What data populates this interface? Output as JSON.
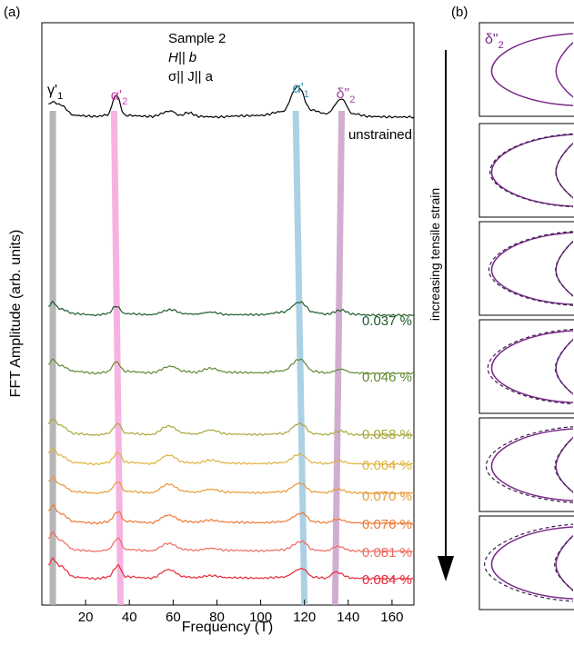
{
  "panel_a_label": "(a)",
  "panel_b_label": "(b)",
  "sample_lines": [
    "Sample 2",
    "H|| b",
    "σ|| J|| a"
  ],
  "curve_inset_label": "δ\"2",
  "arrow_label": "increasing tensile strain",
  "colors": {
    "unstrained": "#000000",
    "0.037 %": "#1f5a2a",
    "0.046 %": "#5e8a2f",
    "0.058 %": "#a8a83a",
    "0.064 %": "#e0b23c",
    "0.070 %": "#e89a37",
    "0.076 %": "#ec7a32",
    "0.081 %": "#ee6a5e",
    "0.084 %": "#e8283a",
    "peak_gamma": "#a9a9a9",
    "peak_alpha2": "#f4a6dc",
    "peak_alpha1": "#9ec9e0",
    "peak_delta2": "#c9a0c9",
    "fermi_surface": "#7a2a8a"
  },
  "chart_data": {
    "type": "line",
    "xlabel": "Frequency (T)",
    "ylabel": "FFT Amplitude (arb. units)",
    "xlim": [
      0,
      170
    ],
    "xticks": [
      20,
      40,
      60,
      80,
      100,
      120,
      140,
      160
    ],
    "yticks": [],
    "peak_labels": [
      {
        "label": "γ'1",
        "x": 5
      },
      {
        "label": "α'2",
        "x": 34
      },
      {
        "label": "α'1",
        "x": 117
      },
      {
        "label": "δ\"2",
        "x": 137
      }
    ],
    "peak_bands": [
      {
        "peak": "γ'1",
        "x_top": 5,
        "x_bottom": 5
      },
      {
        "peak": "α'2",
        "x_top": 33,
        "x_bottom": 36
      },
      {
        "peak": "α'1",
        "x_top": 116,
        "x_bottom": 120
      },
      {
        "peak": "δ\"2",
        "x_top": 137,
        "x_bottom": 134
      }
    ],
    "series": [
      {
        "name": "unstrained",
        "baseline": 0.0,
        "points": [
          [
            3,
            0.25
          ],
          [
            5,
            0.3
          ],
          [
            8,
            0.25
          ],
          [
            15,
            0.05
          ],
          [
            25,
            0.03
          ],
          [
            30,
            0.06
          ],
          [
            34,
            0.42
          ],
          [
            38,
            0.05
          ],
          [
            50,
            0.03
          ],
          [
            59,
            0.13
          ],
          [
            63,
            0.05
          ],
          [
            67,
            0.1
          ],
          [
            72,
            0.03
          ],
          [
            80,
            0.02
          ],
          [
            90,
            0.04
          ],
          [
            100,
            0.05
          ],
          [
            110,
            0.12
          ],
          [
            117,
            0.58
          ],
          [
            123,
            0.15
          ],
          [
            130,
            0.08
          ],
          [
            137,
            0.35
          ],
          [
            142,
            0.08
          ],
          [
            150,
            0.03
          ],
          [
            160,
            0.02
          ],
          [
            170,
            0.02
          ]
        ]
      },
      {
        "name": "0.037 %",
        "baseline": 0.0,
        "points": [
          [
            3,
            0.2
          ],
          [
            5,
            0.28
          ],
          [
            8,
            0.15
          ],
          [
            15,
            0.05
          ],
          [
            25,
            0.02
          ],
          [
            30,
            0.05
          ],
          [
            34,
            0.2
          ],
          [
            38,
            0.05
          ],
          [
            50,
            0.03
          ],
          [
            59,
            0.13
          ],
          [
            65,
            0.05
          ],
          [
            70,
            0.04
          ],
          [
            77,
            0.08
          ],
          [
            85,
            0.03
          ],
          [
            100,
            0.03
          ],
          [
            110,
            0.08
          ],
          [
            118,
            0.28
          ],
          [
            124,
            0.08
          ],
          [
            130,
            0.04
          ],
          [
            137,
            0.12
          ],
          [
            142,
            0.04
          ],
          [
            150,
            0.02
          ],
          [
            160,
            0.02
          ],
          [
            170,
            0.02
          ]
        ]
      },
      {
        "name": "0.046 %",
        "baseline": 0.0,
        "points": [
          [
            3,
            0.2
          ],
          [
            5,
            0.3
          ],
          [
            8,
            0.18
          ],
          [
            15,
            0.06
          ],
          [
            25,
            0.02
          ],
          [
            30,
            0.05
          ],
          [
            34,
            0.25
          ],
          [
            38,
            0.06
          ],
          [
            50,
            0.03
          ],
          [
            59,
            0.16
          ],
          [
            65,
            0.06
          ],
          [
            70,
            0.04
          ],
          [
            77,
            0.12
          ],
          [
            85,
            0.04
          ],
          [
            100,
            0.03
          ],
          [
            110,
            0.07
          ],
          [
            118,
            0.3
          ],
          [
            124,
            0.06
          ],
          [
            130,
            0.03
          ],
          [
            137,
            0.1
          ],
          [
            142,
            0.03
          ],
          [
            150,
            0.02
          ],
          [
            160,
            0.02
          ],
          [
            170,
            0.02
          ]
        ]
      },
      {
        "name": "0.058 %",
        "baseline": 0.0,
        "points": [
          [
            3,
            0.25
          ],
          [
            5,
            0.35
          ],
          [
            8,
            0.22
          ],
          [
            15,
            0.05
          ],
          [
            25,
            0.02
          ],
          [
            30,
            0.05
          ],
          [
            35,
            0.25
          ],
          [
            38,
            0.06
          ],
          [
            50,
            0.03
          ],
          [
            58,
            0.2
          ],
          [
            65,
            0.06
          ],
          [
            70,
            0.04
          ],
          [
            77,
            0.12
          ],
          [
            85,
            0.04
          ],
          [
            100,
            0.03
          ],
          [
            110,
            0.05
          ],
          [
            118,
            0.25
          ],
          [
            124,
            0.05
          ],
          [
            130,
            0.03
          ],
          [
            137,
            0.1
          ],
          [
            142,
            0.03
          ],
          [
            150,
            0.02
          ],
          [
            160,
            0.02
          ],
          [
            170,
            0.02
          ]
        ]
      },
      {
        "name": "0.064 %",
        "baseline": 0.0,
        "points": [
          [
            3,
            0.25
          ],
          [
            5,
            0.33
          ],
          [
            8,
            0.2
          ],
          [
            15,
            0.05
          ],
          [
            25,
            0.02
          ],
          [
            30,
            0.05
          ],
          [
            35,
            0.25
          ],
          [
            38,
            0.06
          ],
          [
            50,
            0.03
          ],
          [
            58,
            0.2
          ],
          [
            65,
            0.06
          ],
          [
            70,
            0.04
          ],
          [
            77,
            0.1
          ],
          [
            85,
            0.04
          ],
          [
            100,
            0.03
          ],
          [
            110,
            0.05
          ],
          [
            118,
            0.22
          ],
          [
            124,
            0.05
          ],
          [
            130,
            0.03
          ],
          [
            136,
            0.08
          ],
          [
            142,
            0.03
          ],
          [
            150,
            0.02
          ],
          [
            160,
            0.02
          ],
          [
            170,
            0.02
          ]
        ]
      },
      {
        "name": "0.070 %",
        "baseline": 0.0,
        "points": [
          [
            3,
            0.25
          ],
          [
            5,
            0.35
          ],
          [
            8,
            0.2
          ],
          [
            15,
            0.05
          ],
          [
            25,
            0.02
          ],
          [
            30,
            0.05
          ],
          [
            35,
            0.25
          ],
          [
            38,
            0.06
          ],
          [
            50,
            0.03
          ],
          [
            58,
            0.2
          ],
          [
            65,
            0.06
          ],
          [
            70,
            0.04
          ],
          [
            77,
            0.1
          ],
          [
            85,
            0.04
          ],
          [
            100,
            0.03
          ],
          [
            110,
            0.05
          ],
          [
            118,
            0.22
          ],
          [
            124,
            0.05
          ],
          [
            130,
            0.03
          ],
          [
            135,
            0.1
          ],
          [
            142,
            0.03
          ],
          [
            150,
            0.02
          ],
          [
            160,
            0.02
          ],
          [
            170,
            0.02
          ]
        ]
      },
      {
        "name": "0.076 %",
        "baseline": 0.0,
        "points": [
          [
            3,
            0.25
          ],
          [
            5,
            0.38
          ],
          [
            8,
            0.22
          ],
          [
            15,
            0.05
          ],
          [
            25,
            0.02
          ],
          [
            30,
            0.05
          ],
          [
            35,
            0.25
          ],
          [
            38,
            0.06
          ],
          [
            50,
            0.03
          ],
          [
            58,
            0.18
          ],
          [
            65,
            0.06
          ],
          [
            70,
            0.04
          ],
          [
            77,
            0.08
          ],
          [
            85,
            0.04
          ],
          [
            100,
            0.03
          ],
          [
            110,
            0.05
          ],
          [
            119,
            0.22
          ],
          [
            124,
            0.05
          ],
          [
            130,
            0.03
          ],
          [
            135,
            0.1
          ],
          [
            142,
            0.03
          ],
          [
            150,
            0.02
          ],
          [
            160,
            0.02
          ],
          [
            170,
            0.02
          ]
        ]
      },
      {
        "name": "0.081 %",
        "baseline": 0.0,
        "points": [
          [
            3,
            0.28
          ],
          [
            5,
            0.4
          ],
          [
            8,
            0.25
          ],
          [
            15,
            0.05
          ],
          [
            25,
            0.02
          ],
          [
            30,
            0.05
          ],
          [
            35,
            0.28
          ],
          [
            38,
            0.06
          ],
          [
            50,
            0.03
          ],
          [
            58,
            0.18
          ],
          [
            65,
            0.06
          ],
          [
            70,
            0.04
          ],
          [
            77,
            0.08
          ],
          [
            85,
            0.04
          ],
          [
            100,
            0.03
          ],
          [
            110,
            0.05
          ],
          [
            119,
            0.22
          ],
          [
            124,
            0.05
          ],
          [
            130,
            0.03
          ],
          [
            135,
            0.12
          ],
          [
            142,
            0.03
          ],
          [
            150,
            0.02
          ],
          [
            160,
            0.02
          ],
          [
            170,
            0.02
          ]
        ]
      },
      {
        "name": "0.084 %",
        "baseline": 0.0,
        "points": [
          [
            3,
            0.3
          ],
          [
            5,
            0.42
          ],
          [
            8,
            0.28
          ],
          [
            15,
            0.05
          ],
          [
            25,
            0.02
          ],
          [
            30,
            0.05
          ],
          [
            35,
            0.28
          ],
          [
            38,
            0.06
          ],
          [
            50,
            0.03
          ],
          [
            58,
            0.2
          ],
          [
            65,
            0.06
          ],
          [
            70,
            0.04
          ],
          [
            77,
            0.08
          ],
          [
            85,
            0.04
          ],
          [
            100,
            0.03
          ],
          [
            110,
            0.05
          ],
          [
            119,
            0.22
          ],
          [
            124,
            0.05
          ],
          [
            130,
            0.03
          ],
          [
            134,
            0.15
          ],
          [
            142,
            0.03
          ],
          [
            150,
            0.02
          ],
          [
            160,
            0.02
          ],
          [
            170,
            0.02
          ]
        ]
      }
    ],
    "series_labels": [
      "unstrained",
      "0.037 %",
      "0.046 %",
      "0.058 %",
      "0.064 %",
      "0.070 %",
      "0.076 %",
      "0.081 %",
      "0.084 %"
    ],
    "fermi_surface_insets": [
      {
        "solid": "δ\"2",
        "dashed": false
      },
      {
        "solid": "δ\"2",
        "dashed": true,
        "shrink": 0.03
      },
      {
        "solid": "δ\"2",
        "dashed": true,
        "shrink": 0.05
      },
      {
        "solid": "δ\"2",
        "dashed": true,
        "shrink": 0.07
      },
      {
        "solid": "δ\"2",
        "dashed": true,
        "shrink": 0.1
      },
      {
        "solid": "δ\"2",
        "dashed": true,
        "shrink": 0.13
      }
    ]
  }
}
